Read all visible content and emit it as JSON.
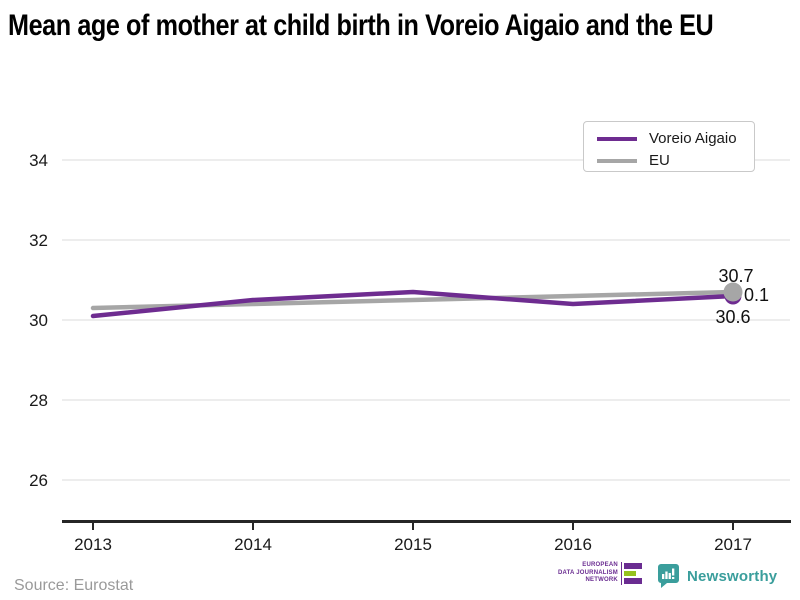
{
  "title": "Mean age of mother at child birth in Voreio Aigaio and the EU",
  "source": "Source: Eurostat",
  "colors": {
    "series_purple": "#6e2c90",
    "series_gray": "#a6a6a6",
    "grid": "#e2e2e2",
    "axis": "#262626",
    "tick_text": "#1a1a1a",
    "annotation_text": "#111111",
    "source_text": "#9a9a9a",
    "newsworthy_teal": "#3a9e9c",
    "edjnet_purple": "#6a2c91",
    "edjnet_green": "#95c11f"
  },
  "legend": {
    "items": [
      {
        "label": "Voreio Aigaio",
        "color": "#6e2c90"
      },
      {
        "label": "EU",
        "color": "#a6a6a6"
      }
    ]
  },
  "chart_data": {
    "type": "line",
    "x": [
      2013,
      2014,
      2015,
      2016,
      2017
    ],
    "series": [
      {
        "name": "EU",
        "color": "#a6a6a6",
        "values": [
          30.3,
          30.4,
          30.5,
          30.6,
          30.7
        ]
      },
      {
        "name": "Voreio Aigaio",
        "color": "#6e2c90",
        "values": [
          30.1,
          30.5,
          30.7,
          30.4,
          30.6
        ]
      }
    ],
    "title": "Mean age of mother at child birth in Voreio Aigaio and the EU",
    "xlabel": "",
    "ylabel": "",
    "yticks": [
      34,
      32,
      30,
      28,
      26
    ],
    "ylim": [
      24.9,
      35
    ],
    "grid": true,
    "legend_position": "top-right",
    "end_markers": true,
    "annotations": [
      {
        "text": "30.7",
        "pos": "above"
      },
      {
        "text": "0.1",
        "pos": "right"
      },
      {
        "text": "30.6",
        "pos": "below"
      }
    ]
  },
  "footer": {
    "edjnet": {
      "lines": [
        "EUROPEAN",
        "DATA JOURNALISM",
        "NETWORK"
      ]
    },
    "newsworthy": {
      "label": "Newsworthy"
    }
  }
}
